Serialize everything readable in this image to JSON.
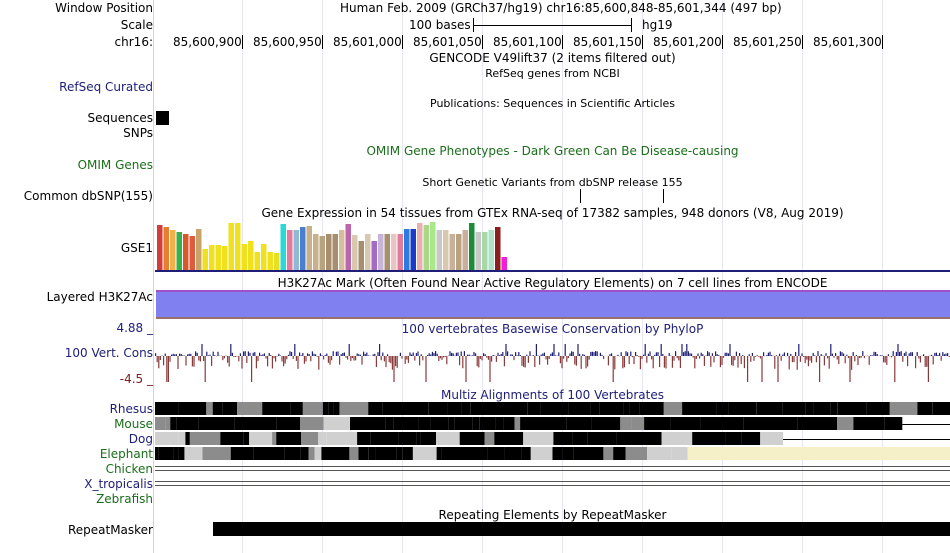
{
  "header": {
    "window_position_label": "Window Position",
    "scale_label": "Scale",
    "chrom_label": "chr16:",
    "assembly_text": "Human Feb. 2009 (GRCh37/hg19)    chr16:85,600,848-85,601,344 (497 bp)",
    "scale_bar_label": "100 bases",
    "scale_assembly": "hg19",
    "ruler_ticks": [
      "85,600,900",
      "85,600,950",
      "85,601,000",
      "85,601,050",
      "85,601,100",
      "85,601,150",
      "85,601,200",
      "85,601,250",
      "85,601,300"
    ]
  },
  "tracks": {
    "gencode_title": "GENCODE V49lift37 (2 items filtered out)",
    "refseq_label": "RefSeq Curated",
    "refseq_title": "RefSeq genes from NCBI",
    "publications_title": "Publications: Sequences in Scientific Articles",
    "sequences_label": "Sequences",
    "snps_label": "SNPs",
    "omim_label": "OMIM Genes",
    "omim_title": "OMIM Gene Phenotypes - Dark Green Can Be Disease-causing",
    "dbsnp_title": "Short Genetic Variants from dbSNP release 155",
    "dbsnp_label": "Common dbSNP(155)",
    "gtex_title": "Gene Expression in 54 tissues from GTEx RNA-seq of 17382 samples, 948 donors (V8, Aug 2019)",
    "gtex_label": "GSE1",
    "h3k27ac_title": "H3K27Ac Mark (Often Found Near Active Regulatory Elements) on 7 cell lines from ENCODE",
    "h3k27ac_label": "Layered H3K27Ac",
    "phylop_max": "4.88 _",
    "phylop_title": "100 vertebrates Basewise Conservation by PhyloP",
    "phylop_label": "100 Vert. Cons",
    "phylop_min": "-4.5 _",
    "multiz_title": "Multiz Alignments of 100 Vertebrates",
    "species": [
      "Rhesus",
      "Mouse",
      "Dog",
      "Elephant",
      "Chicken",
      "X_tropicalis",
      "Zebrafish"
    ],
    "repeat_title": "Repeating Elements by RepeatMasker",
    "repeat_label": "RepeatMasker"
  },
  "colors": {
    "label_blue": "#1e1e78",
    "label_green": "#1a6e1a",
    "label_maroon": "#7a1e1e",
    "h3k27ac_fill": "#8080f0",
    "phylop_pos": "#1e1e78",
    "phylop_neg": "#8b3a3a",
    "elephant_gap": "#f5f0c8"
  },
  "gtex_bars": [
    {
      "c": "#d43b3b",
      "h": 0.93
    },
    {
      "c": "#e77d2e",
      "h": 0.9
    },
    {
      "c": "#f1b04a",
      "h": 0.83
    },
    {
      "c": "#3bb04a",
      "h": 0.8
    },
    {
      "c": "#d45b2b",
      "h": 0.76
    },
    {
      "c": "#e05b3b",
      "h": 0.7
    },
    {
      "c": "#c9a46a",
      "h": 0.85
    },
    {
      "c": "#f0e11e",
      "h": 0.43
    },
    {
      "c": "#f0e11e",
      "h": 0.53
    },
    {
      "c": "#f0e11e",
      "h": 0.53
    },
    {
      "c": "#f0e11e",
      "h": 0.5
    },
    {
      "c": "#f0e11e",
      "h": 0.98
    },
    {
      "c": "#f0e11e",
      "h": 0.98
    },
    {
      "c": "#f0e11e",
      "h": 0.55
    },
    {
      "c": "#f0e11e",
      "h": 0.6
    },
    {
      "c": "#f0e11e",
      "h": 0.38
    },
    {
      "c": "#f0e11e",
      "h": 0.55
    },
    {
      "c": "#f0e11e",
      "h": 0.38
    },
    {
      "c": "#e8e01e",
      "h": 0.36
    },
    {
      "c": "#2bd8d8",
      "h": 0.96
    },
    {
      "c": "#e07b9e",
      "h": 0.83
    },
    {
      "c": "#93b7d8",
      "h": 0.83
    },
    {
      "c": "#4a7fd0",
      "h": 0.9
    },
    {
      "c": "#c8b08a",
      "h": 0.92
    },
    {
      "c": "#c8b08a",
      "h": 0.76
    },
    {
      "c": "#b9a27f",
      "h": 0.7
    },
    {
      "c": "#a68e6e",
      "h": 0.76
    },
    {
      "c": "#a68e6e",
      "h": 0.76
    },
    {
      "c": "#d8bc9e",
      "h": 0.83
    },
    {
      "c": "#bb66aa",
      "h": 0.95
    },
    {
      "c": "#d8c8b0",
      "h": 0.73
    },
    {
      "c": "#a68e6e",
      "h": 0.6
    },
    {
      "c": "#d8c8b0",
      "h": 0.76
    },
    {
      "c": "#a46ac8",
      "h": 0.6
    },
    {
      "c": "#c8b4d8",
      "h": 0.76
    },
    {
      "c": "#a68e6e",
      "h": 0.76
    },
    {
      "c": "#e8c4c4",
      "h": 0.76
    },
    {
      "c": "#e07b9e",
      "h": 0.76
    },
    {
      "c": "#2b7be0",
      "h": 0.86
    },
    {
      "c": "#1e3bc8",
      "h": 0.86
    },
    {
      "c": "#e6b0b0",
      "h": 0.98
    },
    {
      "c": "#a8d888",
      "h": 0.93
    },
    {
      "c": "#a8e888",
      "h": 1.0
    },
    {
      "c": "#c8c8c8",
      "h": 0.83
    },
    {
      "c": "#d8c8b0",
      "h": 0.83
    },
    {
      "c": "#c8b09a",
      "h": 0.76
    },
    {
      "c": "#b9a27f",
      "h": 0.76
    },
    {
      "c": "#c8b09a",
      "h": 0.83
    },
    {
      "c": "#1e8b3b",
      "h": 0.98
    },
    {
      "c": "#c8c8c8",
      "h": 0.8
    },
    {
      "c": "#a8d8a8",
      "h": 0.8
    },
    {
      "c": "#b0e0c8",
      "h": 0.83
    },
    {
      "c": "#8b1e1e",
      "h": 0.9
    },
    {
      "c": "#f01ed8",
      "h": 0.27
    }
  ],
  "multiz_rows": [
    {
      "pattern": "mix",
      "start": 0.0,
      "end": 1.0,
      "density": 0.85
    },
    {
      "pattern": "mix",
      "start": 0.0,
      "end": 0.94,
      "density": 0.7
    },
    {
      "pattern": "mix",
      "start": 0.0,
      "end": 0.79,
      "density": 0.6
    },
    {
      "pattern": "mix",
      "start": 0.0,
      "end": 0.67,
      "density": 0.75,
      "gap_start": 0.67
    }
  ]
}
